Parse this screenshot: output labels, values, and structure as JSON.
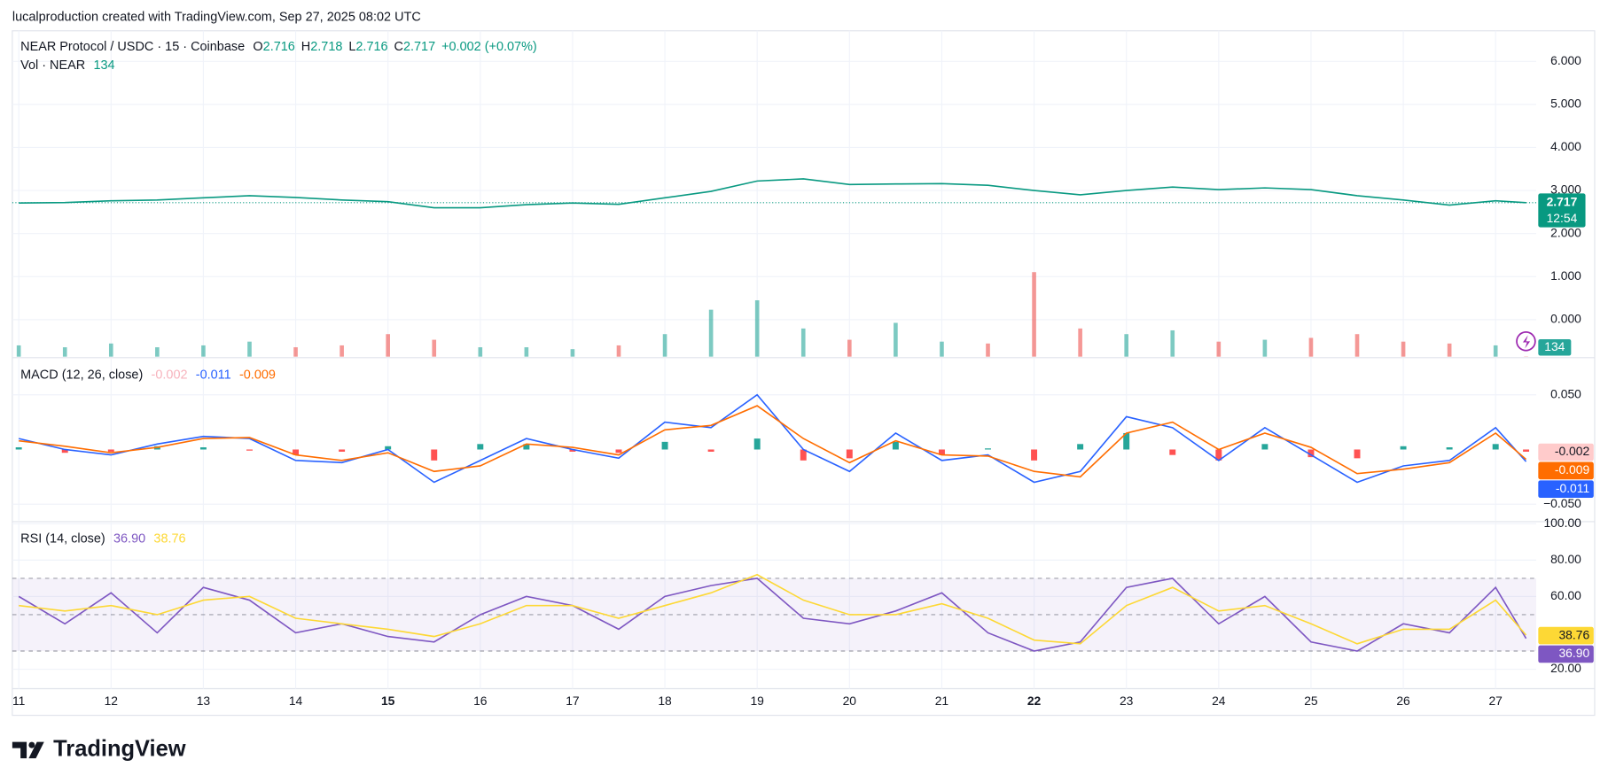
{
  "header": {
    "credit": "lucalproduction created with TradingView.com, Sep 27, 2025 08:02 UTC",
    "brand": "TradingView"
  },
  "chart_data": [
    {
      "type": "line",
      "title": "NEAR Protocol / USDC · 15 · Coinbase",
      "legend_items": [
        {
          "label": "O",
          "value": 2.716
        },
        {
          "label": "H",
          "value": 2.718
        },
        {
          "label": "L",
          "value": 2.716
        },
        {
          "label": "C",
          "value": 2.717
        }
      ],
      "change": "+0.002 (+0.07%)",
      "countdown": "12:54",
      "x": [
        11,
        11.5,
        12,
        12.5,
        13,
        13.5,
        14,
        14.5,
        15,
        15.5,
        16,
        16.5,
        17,
        17.5,
        18,
        18.5,
        19,
        19.5,
        20,
        20.5,
        21,
        21.5,
        22,
        22.5,
        23,
        23.5,
        24,
        24.5,
        25,
        25.5,
        26,
        26.5,
        27,
        27.33
      ],
      "xlim": [
        10.93,
        27.44
      ],
      "ylim": [
        -0.86,
        6.71
      ],
      "yticks": [
        {
          "value": 0,
          "label": "0.000"
        },
        {
          "value": 1,
          "label": "1.000"
        },
        {
          "value": 2,
          "label": "2.000"
        },
        {
          "value": 3,
          "label": "3.000"
        },
        {
          "value": 4,
          "label": "4.000"
        },
        {
          "value": 5,
          "label": "5.000"
        },
        {
          "value": 6,
          "label": "6.000"
        }
      ],
      "grid": true,
      "series": [
        {
          "color": "#089981",
          "values": [
            2.71,
            2.72,
            2.76,
            2.78,
            2.83,
            2.88,
            2.84,
            2.78,
            2.74,
            2.6,
            2.6,
            2.67,
            2.71,
            2.68,
            2.83,
            2.98,
            3.22,
            3.27,
            3.14,
            3.15,
            3.16,
            3.12,
            3.0,
            2.9,
            3.0,
            3.08,
            3.02,
            3.06,
            3.02,
            2.88,
            2.78,
            2.66,
            2.76,
            2.717
          ]
        }
      ]
    },
    {
      "type": "bar",
      "title": "Vol · NEAR",
      "x": [
        11,
        11.5,
        12,
        12.5,
        13,
        13.5,
        14,
        14.5,
        15,
        15.5,
        16,
        16.5,
        17,
        17.5,
        18,
        18.5,
        19,
        19.5,
        20,
        20.5,
        21,
        21.5,
        22,
        22.5,
        23,
        23.5,
        24,
        24.5,
        25,
        25.5,
        26,
        26.5,
        27,
        27.33
      ],
      "xlim": [
        10.93,
        27.44
      ],
      "ylim": [
        0,
        60000
      ],
      "color_up": "#26a69a",
      "color_down": "#ef5350",
      "values": [
        6000,
        5000,
        7000,
        5000,
        6000,
        8000,
        5000,
        6000,
        12000,
        9000,
        5000,
        5000,
        4000,
        6000,
        12000,
        25000,
        30000,
        15000,
        9000,
        18000,
        8000,
        7000,
        45000,
        15000,
        12000,
        14000,
        8000,
        9000,
        10000,
        12000,
        8000,
        7000,
        6000,
        134
      ]
    },
    {
      "type": "line",
      "title": "MACD (12, 26, close)",
      "x": [
        11,
        11.5,
        12,
        12.5,
        13,
        13.5,
        14,
        14.5,
        15,
        15.5,
        16,
        16.5,
        17,
        17.5,
        18,
        18.5,
        19,
        19.5,
        20,
        20.5,
        21,
        21.5,
        22,
        22.5,
        23,
        23.5,
        24,
        24.5,
        25,
        25.5,
        26,
        26.5,
        27,
        27.33
      ],
      "xlim": [
        10.93,
        27.44
      ],
      "ylim": [
        -0.065,
        0.083
      ],
      "yticks": [
        {
          "value": -0.05,
          "label": "−0.050"
        },
        {
          "value": 0.05,
          "label": "0.050"
        }
      ],
      "series": [
        {
          "type": "bar",
          "color": "#ff5252",
          "color_up": "#26a69a",
          "values": [
            0.002,
            -0.003,
            -0.002,
            0.003,
            0.002,
            -0.001,
            -0.005,
            -0.002,
            0.003,
            -0.01,
            0.005,
            0.005,
            -0.002,
            -0.003,
            0.007,
            -0.002,
            0.01,
            -0.01,
            -0.008,
            0.007,
            -0.005,
            0.001,
            -0.01,
            0.005,
            0.015,
            -0.005,
            -0.01,
            0.005,
            -0.007,
            -0.008,
            0.003,
            0.002,
            0.005,
            -0.002
          ]
        },
        {
          "color": "#2962ff",
          "values": [
            0.01,
            0.0,
            -0.005,
            0.005,
            0.012,
            0.01,
            -0.01,
            -0.012,
            0.0,
            -0.03,
            -0.01,
            0.01,
            0.0,
            -0.008,
            0.025,
            0.02,
            0.05,
            0.0,
            -0.02,
            0.015,
            -0.01,
            -0.005,
            -0.03,
            -0.02,
            0.03,
            0.02,
            -0.01,
            0.02,
            -0.005,
            -0.03,
            -0.015,
            -0.01,
            0.02,
            -0.011
          ]
        },
        {
          "color": "#ff6d00",
          "values": [
            0.008,
            0.003,
            -0.003,
            0.002,
            0.01,
            0.011,
            -0.005,
            -0.01,
            -0.003,
            -0.02,
            -0.015,
            0.005,
            0.002,
            -0.005,
            0.018,
            0.022,
            0.04,
            0.01,
            -0.012,
            0.008,
            -0.005,
            -0.006,
            -0.02,
            -0.025,
            0.015,
            0.025,
            0.0,
            0.015,
            0.002,
            -0.022,
            -0.018,
            -0.012,
            0.015,
            -0.009
          ]
        }
      ]
    },
    {
      "type": "line",
      "title": "RSI (14, close)",
      "x": [
        11,
        11.5,
        12,
        12.5,
        13,
        13.5,
        14,
        14.5,
        15,
        15.5,
        16,
        16.5,
        17,
        17.5,
        18,
        18.5,
        19,
        19.5,
        20,
        20.5,
        21,
        21.5,
        22,
        22.5,
        23,
        23.5,
        24,
        24.5,
        25,
        25.5,
        26,
        26.5,
        27,
        27.33
      ],
      "xlim": [
        10.93,
        27.44
      ],
      "ylim": [
        9.3,
        100.6
      ],
      "yticks": [
        {
          "value": 20,
          "label": "20.00"
        },
        {
          "value": 60,
          "label": "60.00"
        },
        {
          "value": 80,
          "label": "80.00"
        },
        {
          "value": 100,
          "label": "100.00"
        }
      ],
      "bands": [
        30,
        50,
        70
      ],
      "band_color": "#7e57c2",
      "xticks": [
        11,
        12,
        13,
        14,
        15,
        16,
        17,
        18,
        19,
        20,
        21,
        22,
        23,
        24,
        25,
        26,
        27
      ],
      "bold_xticks": [
        15,
        22
      ],
      "series": [
        {
          "color": "#7e57c2",
          "last_label": "36.90",
          "values": [
            60,
            45,
            62,
            40,
            65,
            58,
            40,
            45,
            38,
            35,
            50,
            60,
            55,
            42,
            60,
            66,
            70,
            48,
            45,
            52,
            62,
            40,
            30,
            35,
            65,
            70,
            45,
            60,
            35,
            30,
            45,
            40,
            65,
            36.9
          ]
        },
        {
          "color": "#fdd835",
          "last_label": "38.76",
          "values": [
            55,
            52,
            55,
            50,
            58,
            60,
            48,
            45,
            42,
            38,
            45,
            55,
            55,
            48,
            55,
            62,
            72,
            58,
            50,
            50,
            56,
            48,
            36,
            34,
            55,
            65,
            52,
            55,
            45,
            34,
            42,
            42,
            58,
            38.76
          ]
        }
      ]
    }
  ]
}
